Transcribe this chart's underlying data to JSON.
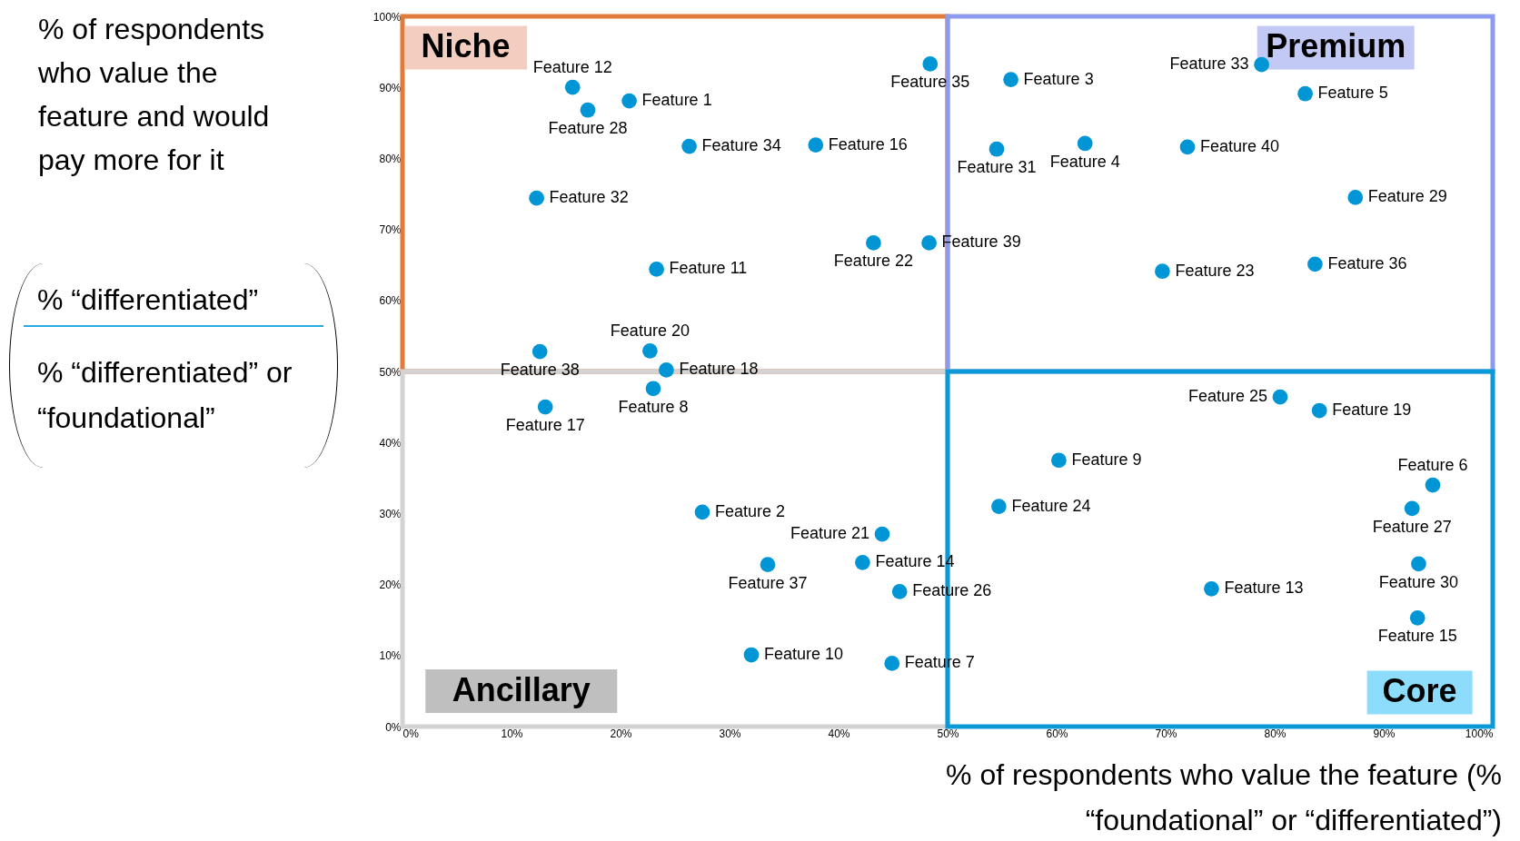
{
  "chart_data": {
    "type": "scatter",
    "xlabel": "% of respondents who value the feature (% “foundational” or “differentiated”)",
    "ylabel": "% of respondents who value the feature and would pay more for it",
    "x": [
      20.8,
      27.5,
      55.8,
      62.6,
      82.8,
      94.5,
      44.9,
      23.0,
      60.2,
      32.0,
      23.3,
      15.6,
      74.2,
      42.2,
      93.1,
      37.9,
      13.1,
      24.2,
      84.1,
      22.7,
      44.0,
      43.2,
      69.7,
      54.7,
      80.5,
      45.6,
      92.6,
      17.0,
      87.4,
      93.2,
      54.5,
      12.3,
      78.8,
      26.3,
      48.4,
      83.7,
      33.5,
      12.6,
      48.3,
      72.0
    ],
    "values": [
      88.1,
      30.2,
      91.1,
      82.1,
      89.1,
      34.0,
      8.9,
      47.6,
      37.5,
      10.1,
      64.4,
      90.0,
      19.4,
      23.1,
      15.3,
      81.9,
      45.0,
      50.2,
      44.5,
      52.9,
      27.1,
      68.1,
      64.1,
      31.0,
      46.4,
      19.0,
      30.7,
      86.8,
      74.5,
      22.9,
      81.3,
      74.4,
      93.2,
      81.7,
      93.3,
      65.1,
      22.8,
      52.8,
      68.1,
      81.6
    ],
    "value_labels": [
      "Feature 1",
      "Feature 2",
      "Feature 3",
      "Feature 4",
      "Feature 5",
      "Feature 6",
      "Feature 7",
      "Feature 8",
      "Feature 9",
      "Feature 10",
      "Feature 11",
      "Feature 12",
      "Feature 13",
      "Feature 14",
      "Feature 15",
      "Feature 16",
      "Feature 17",
      "Feature 18",
      "Feature 19",
      "Feature 20",
      "Feature 21",
      "Feature 22",
      "Feature 23",
      "Feature 24",
      "Feature 25",
      "Feature 26",
      "Feature 27",
      "Feature 28",
      "Feature 29",
      "Feature 30",
      "Feature 31",
      "Feature 32",
      "Feature 33",
      "Feature 34",
      "Feature 35",
      "Feature 36",
      "Feature 37",
      "Feature 38",
      "Feature 39",
      "Feature 40"
    ],
    "color": "#0096d6",
    "marker": "circle",
    "xlim": [
      0,
      100
    ],
    "ylim": [
      0,
      100
    ],
    "xticks": [
      {
        "value": 0,
        "label": "0%"
      },
      {
        "value": 10,
        "label": "10%"
      },
      {
        "value": 20,
        "label": "20%"
      },
      {
        "value": 30,
        "label": "30%"
      },
      {
        "value": 40,
        "label": "40%"
      },
      {
        "value": 50,
        "label": "50%"
      },
      {
        "value": 60,
        "label": "60%"
      },
      {
        "value": 70,
        "label": "70%"
      },
      {
        "value": 80,
        "label": "80%"
      },
      {
        "value": 90,
        "label": "90%"
      },
      {
        "value": 100,
        "label": "100%"
      }
    ],
    "yticks": [
      {
        "value": 0,
        "label": "0%"
      },
      {
        "value": 10,
        "label": "10%"
      },
      {
        "value": 20,
        "label": "20%"
      },
      {
        "value": 30,
        "label": "30%"
      },
      {
        "value": 40,
        "label": "40%"
      },
      {
        "value": 50,
        "label": "50%"
      },
      {
        "value": 60,
        "label": "60%"
      },
      {
        "value": 70,
        "label": "70%"
      },
      {
        "value": 80,
        "label": "80%"
      },
      {
        "value": 90,
        "label": "90%"
      },
      {
        "value": 100,
        "label": "100%"
      }
    ],
    "annotations": [
      "% “differentiated”",
      "% “differentiated” or “foundational”",
      "Niche",
      "Premium",
      "Ancillary",
      "Core"
    ]
  }
}
